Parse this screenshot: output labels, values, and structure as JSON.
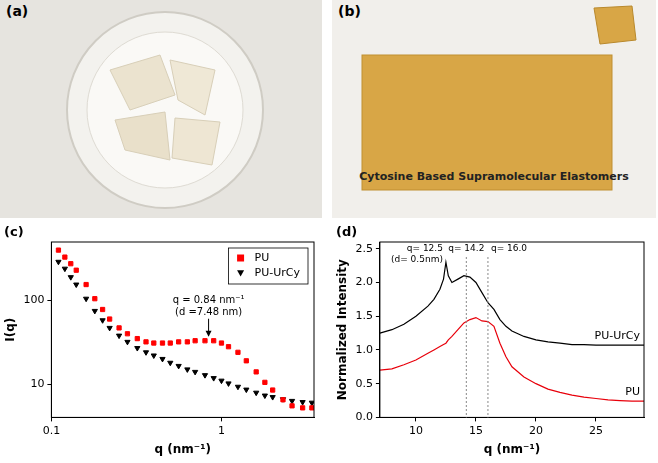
{
  "photos": [
    {
      "label": "(a)"
    },
    {
      "label": "(b)",
      "caption": "Cytosine Based Supramolecular Elastomers"
    }
  ],
  "chart_data": [
    {
      "panel": "(c)",
      "type": "scatter",
      "x_label": "q (nm⁻¹)",
      "y_label": "I(q)",
      "log": true,
      "grid": false,
      "legend": "upper right",
      "xlim": [
        0.1,
        3.5
      ],
      "ylim": [
        4,
        500
      ],
      "xticks": [
        0.1,
        1
      ],
      "yticks": [
        10,
        100
      ],
      "x": [
        0.11,
        0.12,
        0.13,
        0.14,
        0.16,
        0.18,
        0.2,
        0.22,
        0.25,
        0.28,
        0.32,
        0.36,
        0.4,
        0.45,
        0.5,
        0.56,
        0.63,
        0.7,
        0.8,
        0.9,
        1.0,
        1.1,
        1.25,
        1.4,
        1.6,
        1.8,
        2.0,
        2.3,
        2.6,
        3.0,
        3.4
      ],
      "series": [
        {
          "name": "PU",
          "color": "#ff0000",
          "marker": "square",
          "values": [
            400,
            330,
            275,
            230,
            155,
            105,
            78,
            60,
            47,
            40,
            35,
            32,
            31,
            31,
            31,
            32,
            32,
            33,
            33,
            33,
            31,
            28,
            24,
            19,
            14,
            10.5,
            8.5,
            6.5,
            5.5,
            5.2,
            5.2
          ]
        },
        {
          "name": "PU-UrCy",
          "color": "#000000",
          "marker": "triangle-down",
          "values": [
            290,
            240,
            190,
            155,
            105,
            75,
            58,
            47,
            38,
            32,
            27,
            24,
            22,
            20,
            18,
            16.5,
            15,
            14,
            12.8,
            11.8,
            11,
            10.2,
            9.3,
            8.6,
            7.9,
            7.3,
            7,
            6.6,
            6.3,
            6.1,
            6.0
          ]
        }
      ],
      "annotations": [
        {
          "text": [
            "q = 0.84 nm⁻¹",
            "(d =7.48 nm)"
          ],
          "x": 0.84,
          "y": 33
        }
      ]
    },
    {
      "panel": "(d)",
      "type": "line",
      "x_label": "q (nm⁻¹)",
      "y_label": "Normalized Intensity",
      "grid": false,
      "legend": "inline",
      "xlim": [
        7,
        29
      ],
      "ylim": [
        0,
        2.6
      ],
      "xticks": [
        10,
        15,
        20,
        25
      ],
      "yticks": [
        {
          "value": 0,
          "label": "0.0"
        },
        0.5,
        {
          "value": 1,
          "label": "1.0"
        },
        1.5,
        {
          "value": 2,
          "label": "2.0"
        },
        2.5
      ],
      "x": [
        7,
        8,
        9,
        10,
        11,
        11.5,
        12,
        12.3,
        12.5,
        12.7,
        13,
        13.5,
        14,
        14.5,
        15,
        15.5,
        16,
        16.5,
        17,
        17.5,
        18,
        19,
        20,
        21,
        22,
        23,
        24,
        25,
        26,
        27,
        28,
        29
      ],
      "series": [
        {
          "name": "PU-UrCy",
          "color": "#000000",
          "values": [
            1.25,
            1.3,
            1.38,
            1.5,
            1.65,
            1.75,
            1.9,
            2.05,
            2.3,
            2.1,
            2.0,
            2.05,
            2.1,
            2.08,
            2.0,
            1.85,
            1.7,
            1.6,
            1.45,
            1.35,
            1.28,
            1.2,
            1.15,
            1.12,
            1.1,
            1.08,
            1.08,
            1.07,
            1.07,
            1.07,
            1.07,
            1.07
          ]
        },
        {
          "name": "PU",
          "color": "#e8000b",
          "values": [
            0.7,
            0.72,
            0.78,
            0.85,
            0.95,
            1.0,
            1.05,
            1.08,
            1.1,
            1.15,
            1.2,
            1.3,
            1.4,
            1.45,
            1.48,
            1.43,
            1.42,
            1.35,
            1.1,
            0.9,
            0.75,
            0.6,
            0.5,
            0.42,
            0.37,
            0.33,
            0.3,
            0.28,
            0.26,
            0.25,
            0.24,
            0.24
          ]
        }
      ],
      "annotations": [
        {
          "text": [
            "q= 12.5",
            "(d= 0.5nm)"
          ],
          "x": 12.5
        },
        {
          "text": [
            "q= 14.2"
          ],
          "x": 14.2,
          "line_style": "dotted"
        },
        {
          "text": [
            "q= 16.0"
          ],
          "x": 16.0,
          "line_style": "dotted"
        }
      ]
    }
  ]
}
